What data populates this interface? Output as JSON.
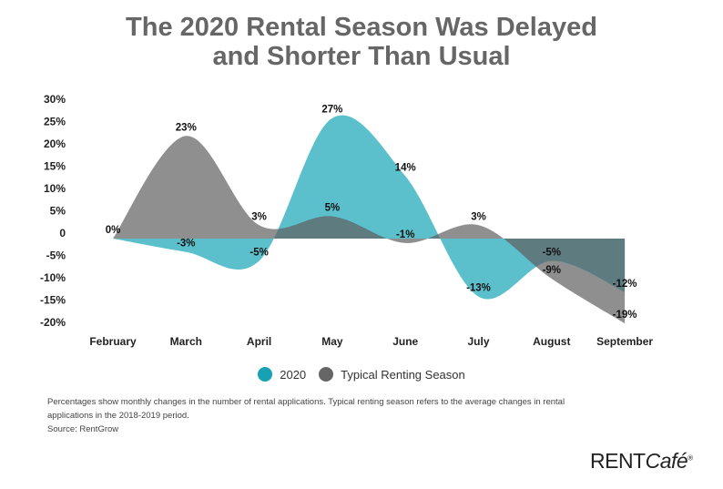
{
  "chart_data": {
    "type": "area",
    "title_line1": "The 2020 Rental Season Was Delayed",
    "title_line2": "and Shorter Than Usual",
    "categories": [
      "February",
      "March",
      "April",
      "May",
      "June",
      "July",
      "August",
      "September"
    ],
    "y_ticks": [
      "30%",
      "25%",
      "20%",
      "15%",
      "10%",
      "5%",
      "0",
      "-5%",
      "-10%",
      "-15%",
      "-20%"
    ],
    "ylim": [
      -20,
      30
    ],
    "grid": false,
    "legend_position": "bottom",
    "series": [
      {
        "name": "Typical Renting Season",
        "color": "#8f8f8f",
        "legend_color": "#666666",
        "values": [
          0,
          23,
          3,
          5,
          -1,
          3,
          -9,
          -19
        ],
        "labels": [
          "0%",
          "23%",
          "3%",
          "5%",
          "-1%",
          "3%",
          "-9%",
          "-19%"
        ]
      },
      {
        "name": "2020",
        "color": "#5bc0cc",
        "legend_color": "#17a2b3",
        "values": [
          0,
          -3,
          -5,
          27,
          14,
          -13,
          -5,
          -12
        ],
        "labels": [
          "",
          "-3%",
          "-5%",
          "27%",
          "14%",
          "-13%",
          "-5%",
          "-12%"
        ]
      }
    ],
    "overlap_color": "#5e7b80"
  },
  "footnote": {
    "line1": "Percentages show monthly changes in the number of rental applications. Typical renting season refers to the average changes in rental applications in the 2018-2019 period.",
    "source": "Source: RentGrow"
  },
  "logo": {
    "text_main": "RENT",
    "text_italic": "Café",
    "mark": "®"
  }
}
